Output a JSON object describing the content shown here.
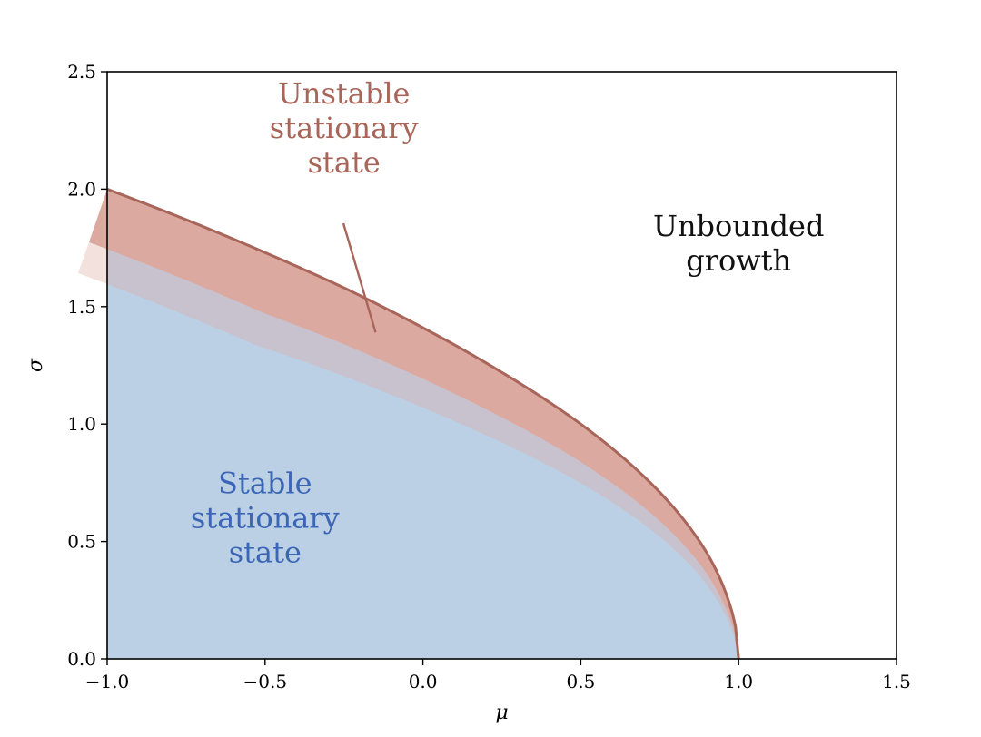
{
  "chart_data": {
    "type": "area",
    "xlabel": "μ",
    "ylabel": "σ",
    "xlim": [
      -1.0,
      1.5
    ],
    "ylim": [
      0.0,
      2.5
    ],
    "x_ticks": [
      -1.0,
      -0.5,
      0.0,
      0.5,
      1.0,
      1.5
    ],
    "x_tick_labels": [
      "−1.0",
      "−0.5",
      "0.0",
      "0.5",
      "1.0",
      "1.5"
    ],
    "y_ticks": [
      0.0,
      0.5,
      1.0,
      1.5,
      2.0,
      2.5
    ],
    "y_tick_labels": [
      "0.0",
      "0.5",
      "1.0",
      "1.5",
      "2.0",
      "2.5"
    ],
    "grid": false,
    "boundary": {
      "x": [
        -1.0,
        -0.75,
        -0.5,
        -0.25,
        0.0,
        0.25,
        0.5,
        0.75,
        0.9,
        0.97,
        1.0
      ],
      "y": [
        2.0,
        1.87,
        1.73,
        1.58,
        1.41,
        1.22,
        1.0,
        0.71,
        0.45,
        0.24,
        0.0
      ]
    },
    "colors": {
      "stable_fill": "#bcd0e5",
      "unstable_fill": "#dca9a0",
      "boundary_line": "#a8665a",
      "stable_text": "#3a66b5",
      "unstable_text": "#a8665a",
      "unbounded_text": "#111111"
    },
    "annotations": [
      {
        "name": "unstable",
        "lines": [
          "Unstable",
          "stationary",
          "state"
        ],
        "x": -0.25,
        "y": 2.26,
        "arrow_to": [
          -0.15,
          1.39
        ]
      },
      {
        "name": "unbounded",
        "lines": [
          "Unbounded",
          "growth"
        ],
        "x": 1.0,
        "y": 1.77
      },
      {
        "name": "stable",
        "lines": [
          "Stable",
          "stationary",
          "state"
        ],
        "x": -0.5,
        "y": 0.6
      }
    ]
  }
}
